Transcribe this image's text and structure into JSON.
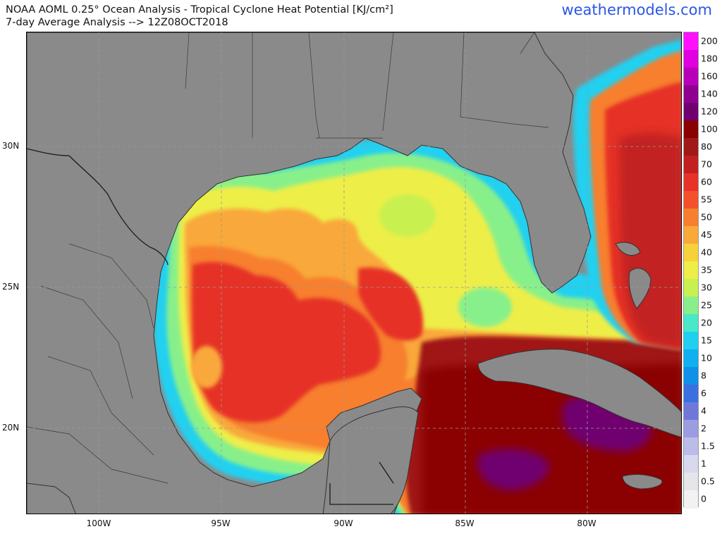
{
  "header": {
    "title_line1": "NOAA AOML 0.25° Ocean Analysis - Tropical Cyclone Heat Potential [KJ/cm²]",
    "title_line2": "7-day Average Analysis --> 12Z08OCT2018",
    "brand": "weathermodels.com"
  },
  "axes": {
    "lat_labels": [
      "30N",
      "25N",
      "20N"
    ],
    "lon_labels": [
      "100W",
      "95W",
      "90W",
      "85W",
      "80W"
    ]
  },
  "colorbar": {
    "labels": [
      "200",
      "180",
      "160",
      "140",
      "120",
      "100",
      "80",
      "70",
      "60",
      "55",
      "50",
      "45",
      "40",
      "35",
      "30",
      "25",
      "20",
      "15",
      "10",
      "8",
      "6",
      "4",
      "2",
      "1.5",
      "1",
      "0.5",
      "0"
    ],
    "colors": [
      "#ff10ff",
      "#e000e0",
      "#b800b8",
      "#900090",
      "#700070",
      "#8b0000",
      "#a01818",
      "#c22020",
      "#e63228",
      "#f4502c",
      "#f77f2e",
      "#f9a83a",
      "#f6d23a",
      "#eeee48",
      "#c8f050",
      "#88f08a",
      "#48e8c8",
      "#20d0f0",
      "#10b0f0",
      "#1090e8",
      "#3a70e0",
      "#6f78d8",
      "#9c9ce0",
      "#bcbce8",
      "#d8d8ee",
      "#e6e6ea",
      "#f2f2f2"
    ]
  },
  "map": {
    "land_color": "#8a8a8a",
    "border_color": "#2a2a2a"
  }
}
